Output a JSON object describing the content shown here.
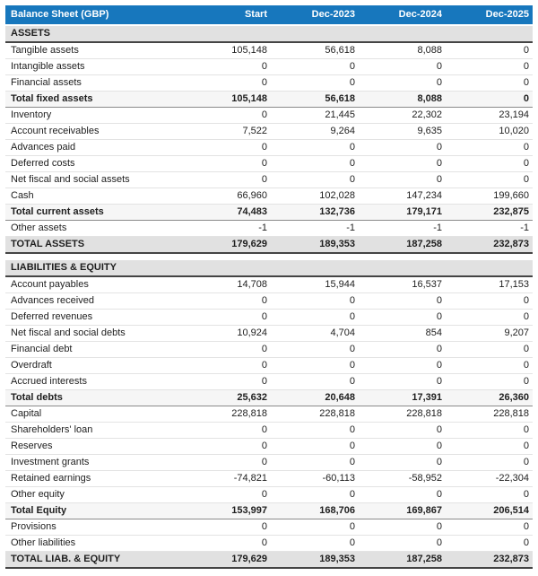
{
  "table": {
    "title": "Balance Sheet (GBP)",
    "columns": [
      "Start",
      "Dec-2023",
      "Dec-2024",
      "Dec-2025"
    ],
    "rows": [
      {
        "type": "section",
        "label": "ASSETS",
        "values": [
          "",
          "",
          "",
          ""
        ]
      },
      {
        "type": "normal",
        "label": "Tangible assets",
        "values": [
          "105,148",
          "56,618",
          "8,088",
          "0"
        ]
      },
      {
        "type": "normal",
        "label": "Intangible assets",
        "values": [
          "0",
          "0",
          "0",
          "0"
        ]
      },
      {
        "type": "normal",
        "label": "Financial assets",
        "values": [
          "0",
          "0",
          "0",
          "0"
        ]
      },
      {
        "type": "subtotal",
        "label": "Total fixed assets",
        "values": [
          "105,148",
          "56,618",
          "8,088",
          "0"
        ]
      },
      {
        "type": "normal",
        "label": "Inventory",
        "values": [
          "0",
          "21,445",
          "22,302",
          "23,194"
        ]
      },
      {
        "type": "normal",
        "label": "Account receivables",
        "values": [
          "7,522",
          "9,264",
          "9,635",
          "10,020"
        ]
      },
      {
        "type": "normal",
        "label": "Advances paid",
        "values": [
          "0",
          "0",
          "0",
          "0"
        ]
      },
      {
        "type": "normal",
        "label": "Deferred costs",
        "values": [
          "0",
          "0",
          "0",
          "0"
        ]
      },
      {
        "type": "normal",
        "label": "Net fiscal and social assets",
        "values": [
          "0",
          "0",
          "0",
          "0"
        ]
      },
      {
        "type": "normal",
        "label": "Cash",
        "values": [
          "66,960",
          "102,028",
          "147,234",
          "199,660"
        ]
      },
      {
        "type": "subtotal",
        "label": "Total current assets",
        "values": [
          "74,483",
          "132,736",
          "179,171",
          "232,875"
        ]
      },
      {
        "type": "normal",
        "label": "Other assets",
        "values": [
          "-1",
          "-1",
          "-1",
          "-1"
        ]
      },
      {
        "type": "total",
        "label": "TOTAL ASSETS",
        "values": [
          "179,629",
          "189,353",
          "187,258",
          "232,873"
        ]
      },
      {
        "type": "spacer",
        "label": "",
        "values": [
          "",
          "",
          "",
          ""
        ]
      },
      {
        "type": "section",
        "label": "LIABILITIES & EQUITY",
        "values": [
          "",
          "",
          "",
          ""
        ]
      },
      {
        "type": "normal",
        "label": "Account payables",
        "values": [
          "14,708",
          "15,944",
          "16,537",
          "17,153"
        ]
      },
      {
        "type": "normal",
        "label": "Advances received",
        "values": [
          "0",
          "0",
          "0",
          "0"
        ]
      },
      {
        "type": "normal",
        "label": "Deferred revenues",
        "values": [
          "0",
          "0",
          "0",
          "0"
        ]
      },
      {
        "type": "normal",
        "label": "Net fiscal and social debts",
        "values": [
          "10,924",
          "4,704",
          "854",
          "9,207"
        ]
      },
      {
        "type": "normal",
        "label": "Financial debt",
        "values": [
          "0",
          "0",
          "0",
          "0"
        ]
      },
      {
        "type": "normal",
        "label": "Overdraft",
        "values": [
          "0",
          "0",
          "0",
          "0"
        ]
      },
      {
        "type": "normal",
        "label": "Accrued interests",
        "values": [
          "0",
          "0",
          "0",
          "0"
        ]
      },
      {
        "type": "subtotal",
        "label": "Total debts",
        "values": [
          "25,632",
          "20,648",
          "17,391",
          "26,360"
        ]
      },
      {
        "type": "normal",
        "label": "Capital",
        "values": [
          "228,818",
          "228,818",
          "228,818",
          "228,818"
        ]
      },
      {
        "type": "normal",
        "label": "Shareholders' loan",
        "values": [
          "0",
          "0",
          "0",
          "0"
        ]
      },
      {
        "type": "normal",
        "label": "Reserves",
        "values": [
          "0",
          "0",
          "0",
          "0"
        ]
      },
      {
        "type": "normal",
        "label": "Investment grants",
        "values": [
          "0",
          "0",
          "0",
          "0"
        ]
      },
      {
        "type": "normal",
        "label": "Retained earnings",
        "values": [
          "-74,821",
          "-60,113",
          "-58,952",
          "-22,304"
        ]
      },
      {
        "type": "normal",
        "label": "Other equity",
        "values": [
          "0",
          "0",
          "0",
          "0"
        ]
      },
      {
        "type": "subtotal",
        "label": "Total Equity",
        "values": [
          "153,997",
          "168,706",
          "169,867",
          "206,514"
        ]
      },
      {
        "type": "normal",
        "label": "Provisions",
        "values": [
          "0",
          "0",
          "0",
          "0"
        ]
      },
      {
        "type": "normal",
        "label": "Other liabilities",
        "values": [
          "0",
          "0",
          "0",
          "0"
        ]
      },
      {
        "type": "total",
        "label": "TOTAL LIAB. & EQUITY",
        "values": [
          "179,629",
          "189,353",
          "187,258",
          "232,873"
        ]
      }
    ]
  },
  "colors": {
    "header_bg": "#1777bd",
    "header_text": "#ffffff",
    "section_bg": "#e1e1e1",
    "subtotal_bg": "#f6f6f6",
    "total_bg": "#e1e1e1",
    "strong_border": "#444444",
    "divider": "#e3e3e3",
    "text": "#1e1e1e"
  }
}
